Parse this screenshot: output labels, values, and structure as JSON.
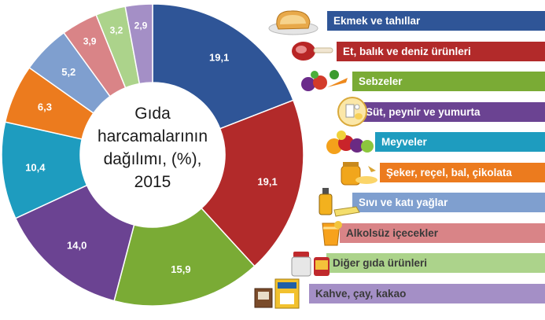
{
  "chart_data": {
    "type": "pie",
    "variant": "donut",
    "title_lines": [
      "Gıda",
      "harcamalarının",
      "dağılımı, (%),",
      "2015"
    ],
    "categories": [
      "Ekmek ve tahıllar",
      "Et, balık ve deniz ürünleri",
      "Sebzeler",
      "Süt, peynir ve yumurta",
      "Meyveler",
      "Şeker, reçel, bal, çikolata",
      "Sıvı ve katı yağlar",
      "Alkolsüz içecekler",
      "Diğer gıda ürünleri",
      "Kahve, çay, kakao"
    ],
    "values": [
      19.1,
      19.1,
      15.9,
      14.0,
      10.4,
      6.3,
      5.2,
      3.9,
      3.2,
      2.9
    ],
    "value_labels": [
      "19,1",
      "19,1",
      "15,9",
      "14,0",
      "10,4",
      "6,3",
      "5,2",
      "3,9",
      "3,2",
      "2,9"
    ],
    "colors": [
      "#2f5597",
      "#b22a2a",
      "#7aab35",
      "#6b4392",
      "#1e9cbf",
      "#ec7b1e",
      "#7f9fcf",
      "#d98487",
      "#acd38b",
      "#a48fc6"
    ],
    "start_angle_deg": 0,
    "direction": "clockwise",
    "legend_placement": "right"
  },
  "legend": {
    "icons": [
      "bread-icon",
      "ham-icon",
      "vegetables-icon",
      "dairy-icon",
      "fruits-icon",
      "honey-icon",
      "oil-bottle-icon",
      "juice-glass-icon",
      "jar-icon",
      "tea-box-icon"
    ]
  }
}
